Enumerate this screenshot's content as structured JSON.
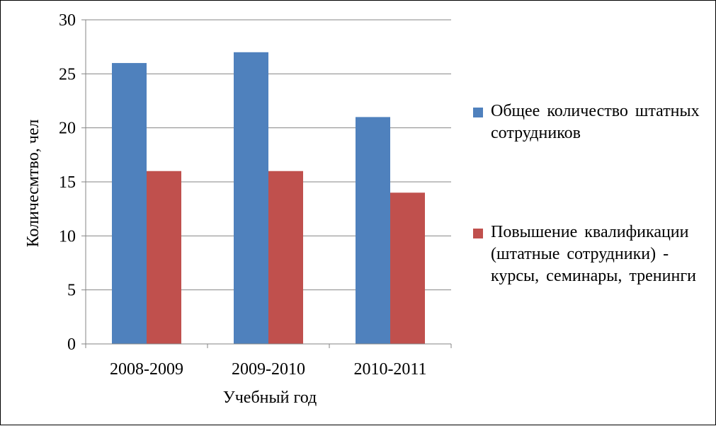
{
  "chart_data": {
    "type": "bar",
    "categories": [
      "2008-2009",
      "2009-2010",
      "2010-2011"
    ],
    "series": [
      {
        "name": "Общее количество штатных сотрудников",
        "values": [
          26,
          27,
          21
        ],
        "color": "#4f81bd"
      },
      {
        "name": "Повышение квалификации (штатные сотрудники) - курсы, семинары, тренинги",
        "values": [
          16,
          16,
          14
        ],
        "color": "#c0504d"
      }
    ],
    "xlabel": "Учебный год",
    "ylabel": "Количесмтво, чел",
    "ylim": [
      0,
      30
    ],
    "yticks": [
      0,
      5,
      10,
      15,
      20,
      25,
      30
    ],
    "grid": true,
    "legend_position": "right"
  }
}
